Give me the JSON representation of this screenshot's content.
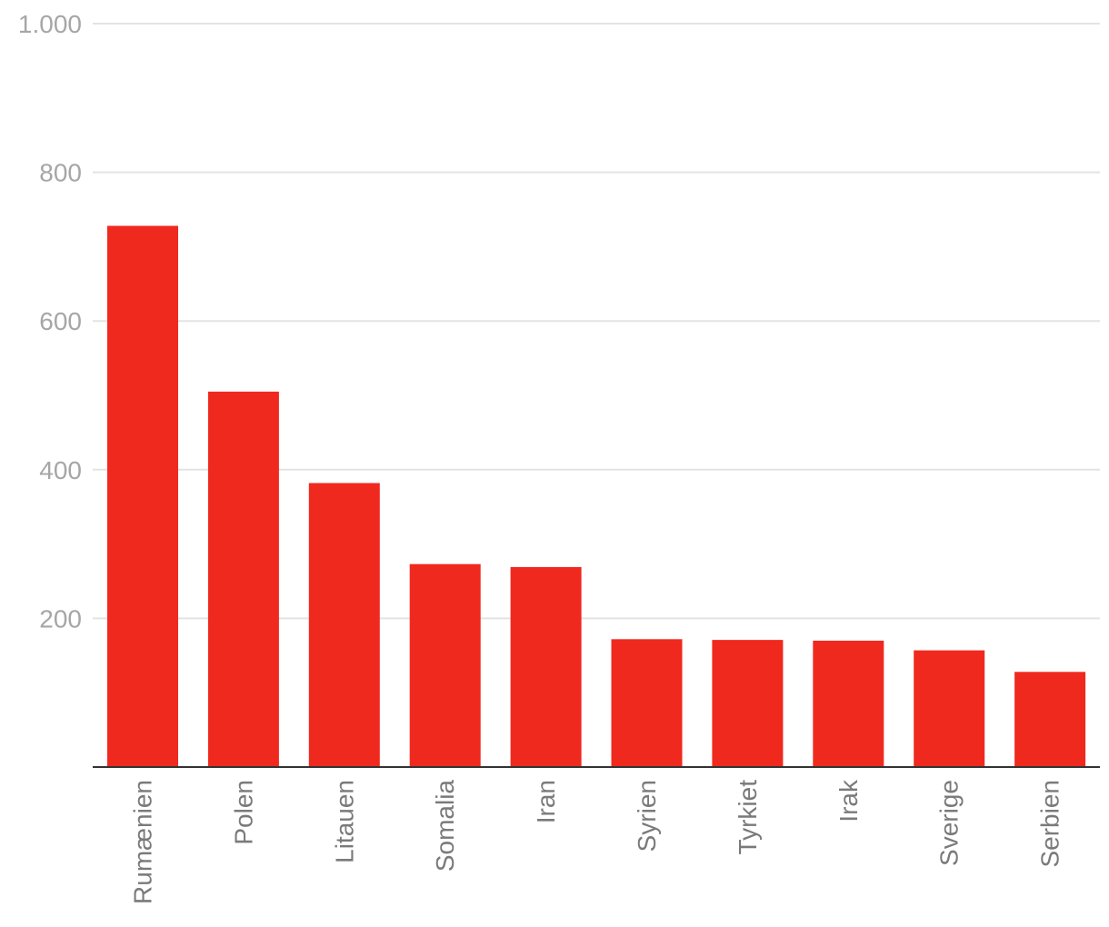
{
  "chart_data": {
    "type": "bar",
    "categories": [
      "Rumænien",
      "Polen",
      "Litauen",
      "Somalia",
      "Iran",
      "Syrien",
      "Tyrkiet",
      "Irak",
      "Sverige",
      "Serbien"
    ],
    "values": [
      728,
      505,
      382,
      273,
      269,
      172,
      171,
      170,
      157,
      128
    ],
    "title": "",
    "xlabel": "",
    "ylabel": "",
    "ylim": [
      0,
      1000
    ],
    "yticks": [
      {
        "value": 200,
        "label": "200"
      },
      {
        "value": 400,
        "label": "400"
      },
      {
        "value": 600,
        "label": "600"
      },
      {
        "value": 800,
        "label": "800"
      },
      {
        "value": 1000,
        "label": "1.000"
      }
    ],
    "grid": true,
    "legend": "none",
    "bar_color": "#f0291f"
  }
}
